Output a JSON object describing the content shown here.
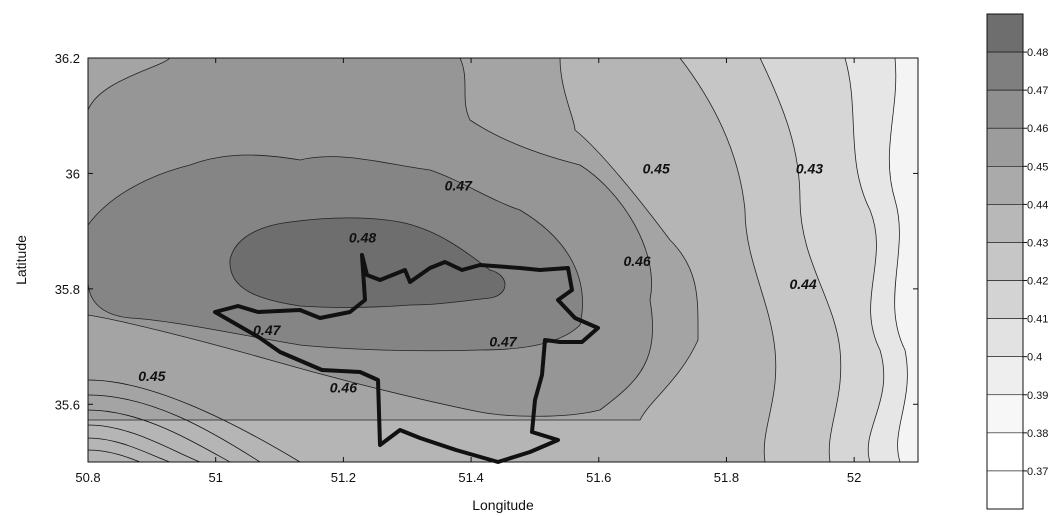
{
  "chart_data": {
    "type": "contour",
    "title": "",
    "xlabel": "Longitude",
    "ylabel": "Latitude",
    "xlim": [
      50.8,
      52.1
    ],
    "ylim": [
      35.5,
      36.2
    ],
    "x_ticks": [
      "50.8",
      "51",
      "51.2",
      "51.4",
      "51.6",
      "51.8",
      "52"
    ],
    "y_ticks": [
      "36.2",
      "36",
      "35.8",
      "35.6"
    ],
    "contour_labels": [
      {
        "text": "0.48",
        "x": 51.23,
        "y": 35.88
      },
      {
        "text": "0.47",
        "x": 51.38,
        "y": 35.97
      },
      {
        "text": "0.47",
        "x": 51.08,
        "y": 35.72
      },
      {
        "text": "0.47",
        "x": 51.45,
        "y": 35.7
      },
      {
        "text": "0.46",
        "x": 51.66,
        "y": 35.84
      },
      {
        "text": "0.46",
        "x": 51.2,
        "y": 35.62
      },
      {
        "text": "0.45",
        "x": 51.69,
        "y": 36.0
      },
      {
        "text": "0.45",
        "x": 50.9,
        "y": 35.64
      },
      {
        "text": "0.44",
        "x": 51.92,
        "y": 35.8
      },
      {
        "text": "0.43",
        "x": 51.93,
        "y": 36.0
      }
    ],
    "colorbar": {
      "levels": [
        "0.48",
        "0.47",
        "0.46",
        "0.45",
        "0.44",
        "0.43",
        "0.42",
        "0.41",
        "0.4",
        "0.39",
        "0.38",
        "0.37"
      ],
      "colors": [
        "#6e6e6e",
        "#7f7f7f",
        "#8f8f8f",
        "#9c9c9c",
        "#aaaaaa",
        "#b8b8b8",
        "#c6c6c6",
        "#d3d3d3",
        "#e2e2e2",
        "#eeeeee",
        "#f7f7f7",
        "#ffffff",
        "#ffffff"
      ]
    }
  }
}
